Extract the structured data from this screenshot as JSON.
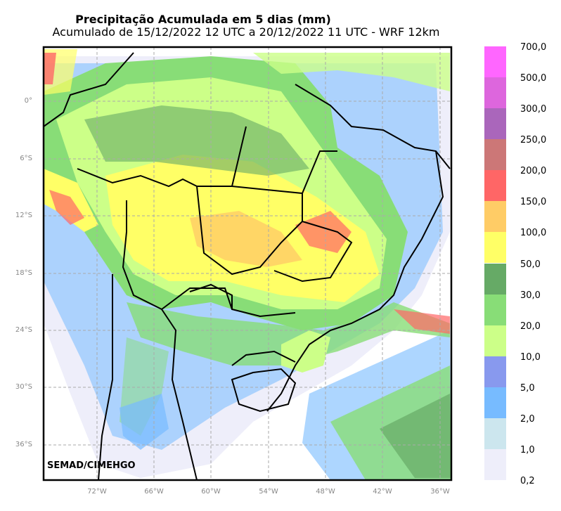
{
  "header": {
    "title": "Precipitação Acumulada em 5 dias (mm)",
    "subtitle": "Acumulado de 15/12/2022 12 UTC a 20/12/2022 11 UTC - WRF 12km"
  },
  "credit": "SEMAD/CIMEHGO",
  "axes": {
    "lat_labels": [
      "0°",
      "6°S",
      "12°S",
      "18°S",
      "24°S",
      "30°S",
      "36°S"
    ],
    "lon_labels": [
      "72°W",
      "66°W",
      "60°W",
      "54°W",
      "48°W",
      "42°W",
      "36°W"
    ]
  },
  "legend": {
    "labels": [
      "700,0",
      "500,0",
      "300,0",
      "250,0",
      "200,0",
      "150,0",
      "100,0",
      "50,0",
      "30,0",
      "20,0",
      "10,0",
      "5,0",
      "2,0",
      "1,0",
      "0,2"
    ],
    "colors": [
      "#ff66ff",
      "#dd66dd",
      "#aa66bb",
      "#cc7777",
      "#ff6666",
      "#ffcc66",
      "#ffff66",
      "#66aa66",
      "#88dd77",
      "#ccff88",
      "#8899ee",
      "#77bbff",
      "#cce6ee",
      "#eeeefa"
    ]
  }
}
